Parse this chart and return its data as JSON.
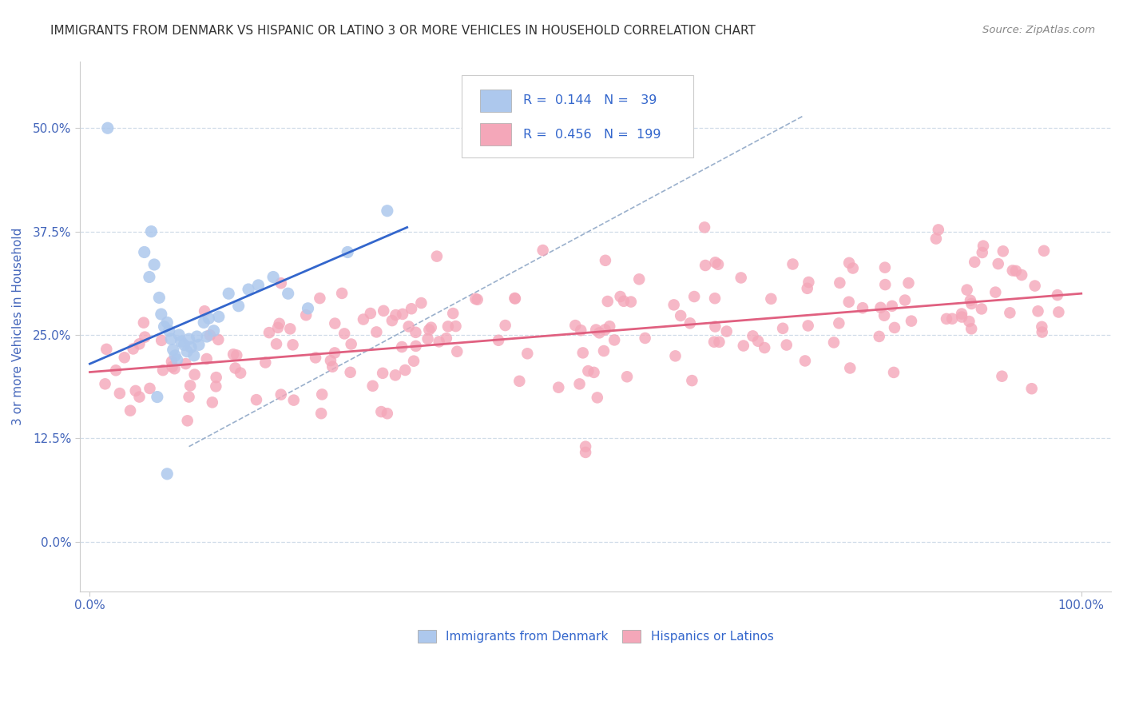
{
  "title": "IMMIGRANTS FROM DENMARK VS HISPANIC OR LATINO 3 OR MORE VEHICLES IN HOUSEHOLD CORRELATION CHART",
  "source": "Source: ZipAtlas.com",
  "ylabel": "3 or more Vehicles in Household",
  "ytick_labels": [
    "0.0%",
    "12.5%",
    "25.0%",
    "37.5%",
    "50.0%"
  ],
  "ytick_vals": [
    0.0,
    0.125,
    0.25,
    0.375,
    0.5
  ],
  "xtick_labels": [
    "0.0%",
    "100.0%"
  ],
  "xtick_vals": [
    0.0,
    1.0
  ],
  "legend_labels": [
    "Immigrants from Denmark",
    "Hispanics or Latinos"
  ],
  "blue_R": 0.144,
  "blue_N": 39,
  "pink_R": 0.456,
  "pink_N": 199,
  "blue_color": "#adc8ed",
  "pink_color": "#f4a7b9",
  "blue_line_color": "#3366cc",
  "pink_line_color": "#e06080",
  "dashed_line_color": "#9ab0cc",
  "title_color": "#333333",
  "source_color": "#888888",
  "axis_label_color": "#4466bb",
  "legend_text_color": "#3366cc",
  "grid_color": "#d0dce8",
  "background_color": "#ffffff",
  "xlim": [
    -0.01,
    1.03
  ],
  "ylim": [
    -0.06,
    0.58
  ],
  "blue_line_x": [
    0.0,
    0.32
  ],
  "blue_line_y": [
    0.215,
    0.38
  ],
  "pink_line_x": [
    0.0,
    1.0
  ],
  "pink_line_y": [
    0.205,
    0.3
  ],
  "dash_line_x": [
    0.1,
    0.72
  ],
  "dash_line_y": [
    0.115,
    0.515
  ]
}
